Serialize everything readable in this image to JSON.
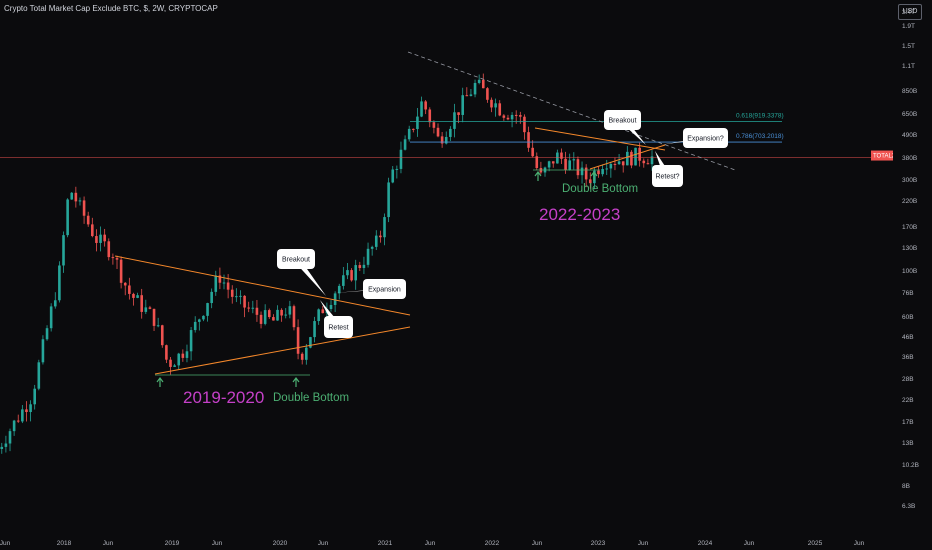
{
  "header": {
    "title": "Crypto Total Market Cap Exclude BTC, $, 2W, CRYPTOCAP",
    "currency": "USD"
  },
  "price_tag": {
    "symbol": "TOTAL2",
    "value": "575.008B",
    "countdown": "3d 7h"
  },
  "colors": {
    "up": "#26a69a",
    "down": "#ef5350",
    "trendline": "#f5882b",
    "purple_label": "#c540c8",
    "green_label": "#4caf72",
    "fib618": "#26a69a",
    "fib786": "#4a8fd6",
    "price_line": "#ef5350"
  },
  "chart_data": {
    "type": "candlestick",
    "y_scale": "log",
    "y_ticks": [
      "2.4T",
      "1.9T",
      "1.5T",
      "1.1T",
      "850B",
      "650B",
      "490B",
      "380B",
      "300B",
      "220B",
      "170B",
      "130B",
      "100B",
      "76B",
      "60B",
      "46B",
      "36B",
      "28B",
      "22B",
      "17B",
      "13B",
      "10.2B",
      "8B",
      "6.3B"
    ],
    "x_ticks": [
      "Jun",
      "2018",
      "Jun",
      "2019",
      "Jun",
      "2020",
      "Jun",
      "2021",
      "Jun",
      "2022",
      "Jun",
      "2023",
      "Jun",
      "2024",
      "Jun",
      "2025",
      "Jun"
    ],
    "current_price": "575.008B",
    "fib_levels": [
      {
        "label": "0.618(919.3378)",
        "value": 919.3378
      },
      {
        "label": "0.786(703.2018)",
        "value": 703.2018
      }
    ],
    "annotations": {
      "period_2019": "2019-2020",
      "period_2022": "2022-2023",
      "double_bottom_1": "Double Bottom",
      "double_bottom_2": "Double Bottom",
      "callouts": [
        "Breakout",
        "Expansion",
        "Retest",
        "Breakout",
        "Expansion?",
        "Retest?"
      ]
    },
    "anchors": [
      {
        "date": 2017.38,
        "value": 13
      },
      {
        "date": 2017.7,
        "value": 26
      },
      {
        "date": 2017.95,
        "value": 120
      },
      {
        "date": 2018.05,
        "value": 390
      },
      {
        "date": 2018.3,
        "value": 200
      },
      {
        "date": 2018.45,
        "value": 170
      },
      {
        "date": 2018.6,
        "value": 100
      },
      {
        "date": 2018.85,
        "value": 70
      },
      {
        "date": 2018.97,
        "value": 39
      },
      {
        "date": 2019.1,
        "value": 45
      },
      {
        "date": 2019.3,
        "value": 80
      },
      {
        "date": 2019.45,
        "value": 125
      },
      {
        "date": 2019.6,
        "value": 90
      },
      {
        "date": 2019.75,
        "value": 78
      },
      {
        "date": 2019.95,
        "value": 68
      },
      {
        "date": 2020.1,
        "value": 82
      },
      {
        "date": 2020.2,
        "value": 42
      },
      {
        "date": 2020.4,
        "value": 78
      },
      {
        "date": 2020.55,
        "value": 105
      },
      {
        "date": 2020.75,
        "value": 140
      },
      {
        "date": 2020.95,
        "value": 200
      },
      {
        "date": 2021.05,
        "value": 450
      },
      {
        "date": 2021.2,
        "value": 700
      },
      {
        "date": 2021.35,
        "value": 1200
      },
      {
        "date": 2021.5,
        "value": 720
      },
      {
        "date": 2021.65,
        "value": 1000
      },
      {
        "date": 2021.85,
        "value": 1500
      },
      {
        "date": 2021.98,
        "value": 1250
      },
      {
        "date": 2022.1,
        "value": 1050
      },
      {
        "date": 2022.25,
        "value": 1000
      },
      {
        "date": 2022.38,
        "value": 590
      },
      {
        "date": 2022.45,
        "value": 440
      },
      {
        "date": 2022.6,
        "value": 590
      },
      {
        "date": 2022.75,
        "value": 520
      },
      {
        "date": 2022.9,
        "value": 430
      },
      {
        "date": 2023.05,
        "value": 560
      },
      {
        "date": 2023.2,
        "value": 560
      },
      {
        "date": 2023.35,
        "value": 590
      },
      {
        "date": 2023.5,
        "value": 575
      }
    ]
  }
}
